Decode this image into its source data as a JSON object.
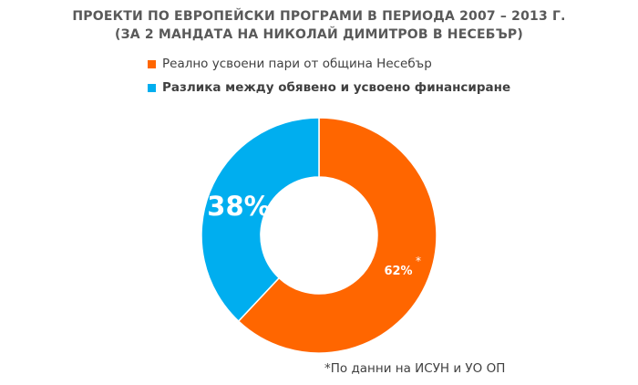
{
  "chart_data": {
    "type": "pie",
    "title_line1": "ПРОЕКТИ ПО ЕВРОПЕЙСКИ ПРОГРАМИ В ПЕРИОДА 2007 – 2013 Г.",
    "title_line2": "(ЗА 2 МАНДАТА НА НИКОЛАЙ ДИМИТРОВ В НЕСЕБЪР)",
    "categories": [
      "Реално усвоени пари от община Несебър",
      "Разлика между обявено и усвоено финансиране"
    ],
    "values": [
      62,
      38
    ],
    "data_labels": [
      "62%",
      "38%"
    ],
    "data_label_note": "*",
    "colors": [
      "#FF6600",
      "#00AEEF"
    ],
    "legend_position": "top",
    "style": "donut"
  },
  "footnote": "*По данни на ИСУН и УО ОП"
}
